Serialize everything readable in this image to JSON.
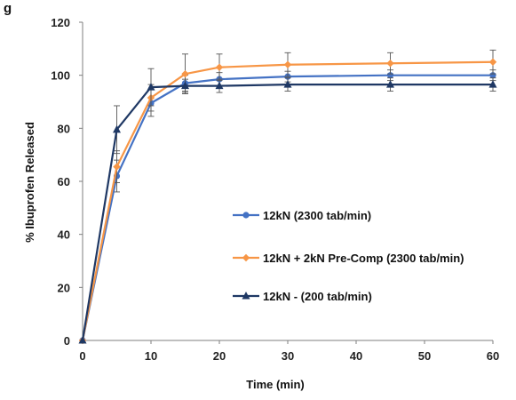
{
  "chart_data": {
    "type": "line",
    "title": "g",
    "xlabel": "Time (min)",
    "ylabel": "% Ibuprofen Released",
    "xlim": [
      0,
      60
    ],
    "ylim": [
      0,
      120
    ],
    "xticks": [
      0,
      10,
      20,
      30,
      40,
      50,
      60
    ],
    "yticks": [
      0,
      20,
      40,
      60,
      80,
      100,
      120
    ],
    "grid": false,
    "legend_position": "right-middle",
    "series": [
      {
        "name": "12kN (2300 tab/min)",
        "color": "#4472c4",
        "marker": "circle",
        "x": [
          0,
          5,
          10,
          15,
          20,
          30,
          45,
          60
        ],
        "y": [
          0,
          62,
          89.5,
          97,
          98.5,
          99.5,
          100,
          100
        ],
        "err": [
          0,
          6,
          5,
          3,
          2.5,
          2,
          2,
          2
        ]
      },
      {
        "name": "12kN + 2kN Pre-Comp (2300 tab/min)",
        "color": "#f79646",
        "marker": "diamond",
        "x": [
          0,
          5,
          10,
          15,
          20,
          30,
          45,
          60
        ],
        "y": [
          0,
          65.5,
          91.5,
          100.5,
          103,
          104,
          104.5,
          105
        ],
        "err": [
          0,
          6,
          5,
          7.5,
          5,
          4.5,
          4,
          4.5
        ]
      },
      {
        "name": "12kN - (200 tab/min)",
        "color": "#1f3864",
        "marker": "triangle",
        "x": [
          0,
          5,
          10,
          15,
          20,
          30,
          45,
          60
        ],
        "y": [
          0,
          79.5,
          95.5,
          96,
          96,
          96.5,
          96.5,
          96.5
        ],
        "err": [
          0,
          9,
          7,
          2.5,
          2.5,
          2.5,
          2.5,
          2.5
        ]
      }
    ]
  }
}
